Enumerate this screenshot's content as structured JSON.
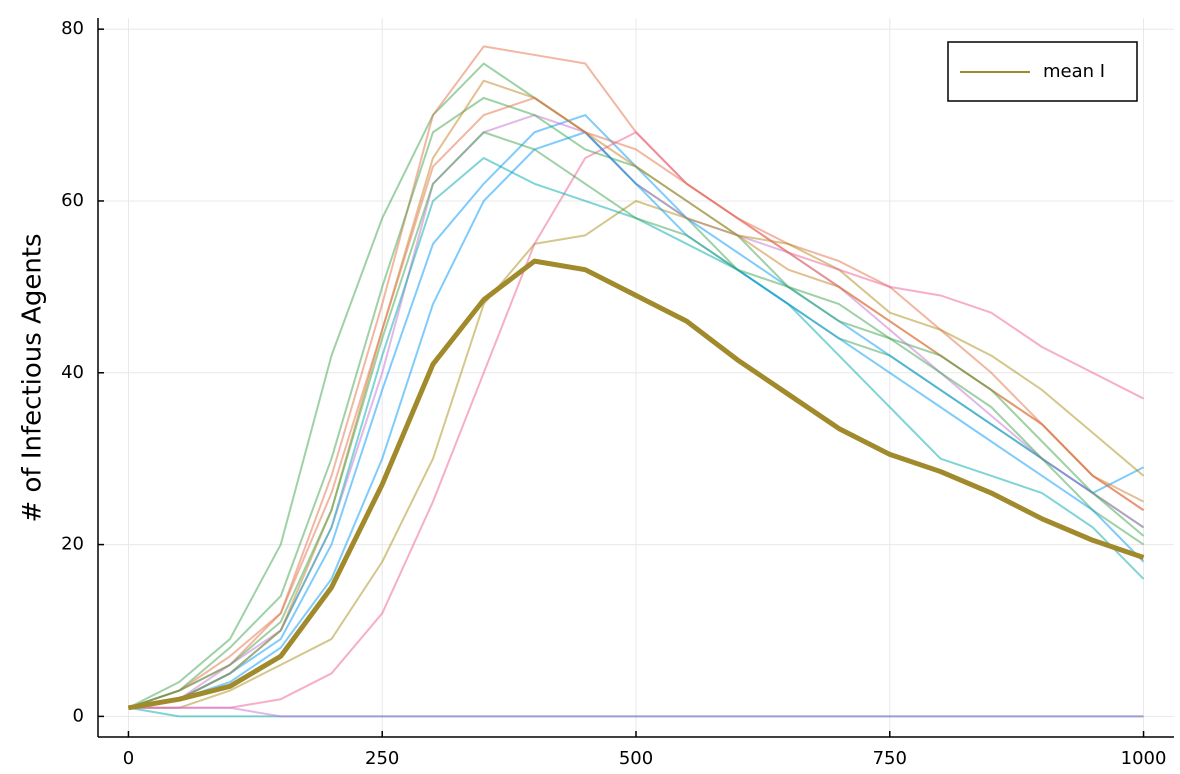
{
  "chart_data": {
    "type": "line",
    "y_label": "# of Infectious Agents",
    "x": [
      0,
      50,
      100,
      150,
      200,
      250,
      300,
      350,
      400,
      450,
      500,
      550,
      600,
      650,
      700,
      750,
      800,
      850,
      900,
      950,
      1000
    ],
    "xlim": [
      -30,
      1030
    ],
    "ylim": [
      -2.4,
      81.3
    ],
    "xticks": [
      0,
      250,
      500,
      750,
      1000
    ],
    "yticks": [
      0,
      20,
      40,
      60,
      80
    ],
    "grid": true,
    "legend": "top right",
    "series": [
      {
        "color": "#3ea44e",
        "values": [
          1,
          4,
          9,
          20,
          42,
          58,
          70,
          76,
          72,
          68,
          62,
          58,
          52,
          48,
          44,
          42,
          38,
          34,
          30,
          26,
          22
        ]
      },
      {
        "color": "#e36f47",
        "values": [
          1,
          3,
          6,
          12,
          28,
          48,
          70,
          78,
          77,
          76,
          68,
          62,
          58,
          55,
          53,
          50,
          45,
          40,
          34,
          28,
          24
        ]
      },
      {
        "color": "#009afa",
        "values": [
          1,
          2,
          5,
          9,
          20,
          38,
          55,
          62,
          68,
          70,
          64,
          58,
          54,
          50,
          46,
          42,
          38,
          34,
          30,
          26,
          29
        ]
      },
      {
        "color": "#c371d2",
        "values": [
          1,
          2,
          6,
          10,
          22,
          40,
          62,
          68,
          70,
          68,
          62,
          58,
          56,
          54,
          50,
          45,
          40,
          35,
          30,
          26,
          22
        ]
      },
      {
        "color": "#ac8e18",
        "values": [
          1,
          1,
          3,
          6,
          9,
          18,
          30,
          48,
          55,
          56,
          60,
          58,
          56,
          55,
          52,
          47,
          45,
          42,
          38,
          33,
          28
        ]
      },
      {
        "color": "#ed5e93",
        "values": [
          1,
          1,
          1,
          2,
          5,
          12,
          25,
          40,
          55,
          65,
          68,
          62,
          58,
          54,
          52,
          50,
          49,
          47,
          43,
          40,
          37
        ]
      },
      {
        "color": "#3ea44e",
        "values": [
          1,
          3,
          8,
          14,
          30,
          50,
          68,
          72,
          70,
          66,
          64,
          60,
          56,
          50,
          46,
          44,
          40,
          36,
          30,
          24,
          20
        ]
      },
      {
        "color": "#00aaae",
        "values": [
          1,
          2,
          5,
          10,
          22,
          42,
          60,
          65,
          62,
          60,
          58,
          55,
          52,
          48,
          42,
          36,
          30,
          28,
          26,
          22,
          16
        ]
      },
      {
        "color": "#009afa",
        "values": [
          1,
          2,
          4,
          8,
          16,
          30,
          48,
          60,
          66,
          68,
          62,
          56,
          52,
          48,
          44,
          40,
          36,
          32,
          28,
          24,
          18
        ]
      },
      {
        "color": "#c68225",
        "values": [
          1,
          2,
          5,
          10,
          24,
          45,
          65,
          74,
          72,
          68,
          64,
          60,
          56,
          52,
          50,
          46,
          42,
          38,
          34,
          28,
          25
        ]
      },
      {
        "color": "#e36f47",
        "values": [
          1,
          3,
          7,
          12,
          26,
          45,
          64,
          70,
          72,
          68,
          66,
          62,
          58,
          54,
          50,
          46,
          42,
          38,
          34,
          28,
          24
        ]
      },
      {
        "color": "#3ea44e",
        "values": [
          1,
          3,
          6,
          11,
          24,
          44,
          62,
          68,
          66,
          62,
          58,
          56,
          52,
          50,
          48,
          44,
          42,
          38,
          32,
          26,
          21
        ]
      },
      {
        "color": "#00aaae",
        "values": [
          1,
          0,
          0,
          0,
          0,
          0,
          0,
          0,
          0,
          0,
          0,
          0,
          0,
          0,
          0,
          0,
          0,
          0,
          0,
          0,
          0
        ]
      },
      {
        "color": "#c371d2",
        "values": [
          1,
          1,
          1,
          0,
          0,
          0,
          0,
          0,
          0,
          0,
          0,
          0,
          0,
          0,
          0,
          0,
          0,
          0,
          0,
          0,
          0
        ]
      },
      {
        "name": "mean I",
        "color": "#a08a2c",
        "values": [
          1,
          2,
          3.5,
          7,
          15,
          27,
          41,
          48.5,
          53,
          52,
          49,
          46,
          41.5,
          37.5,
          33.5,
          30.5,
          28.5,
          26,
          23,
          20.5,
          18.5
        ]
      }
    ]
  }
}
